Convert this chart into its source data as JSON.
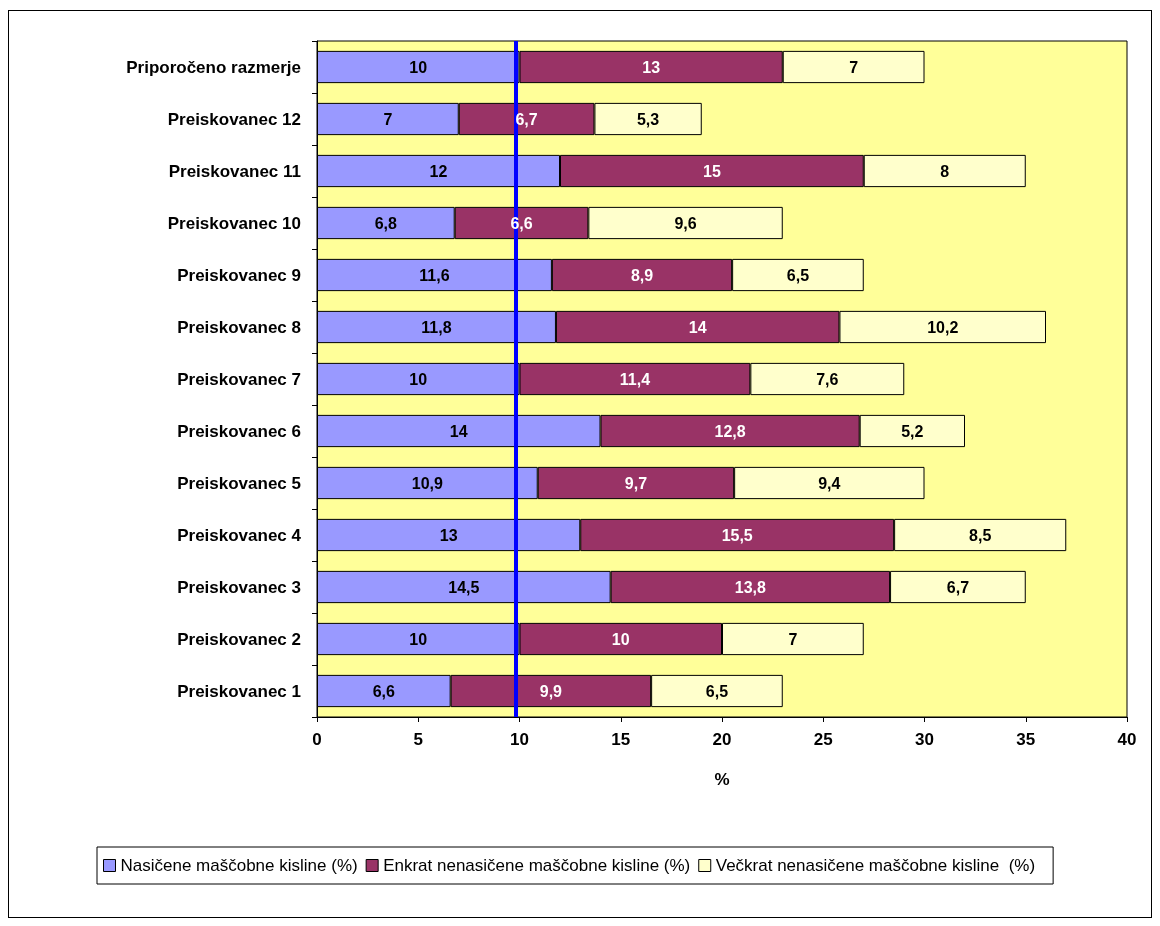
{
  "chart_data": {
    "type": "bar",
    "orientation": "horizontal",
    "stacked": true,
    "xlabel": "%",
    "categories": [
      "Priporočeno razmerje",
      "Preiskovanec 12",
      "Preiskovanec 11",
      "Preiskovanec 10",
      "Preiskovanec 9",
      "Preiskovanec 8",
      "Preiskovanec 7",
      "Preiskovanec 6",
      "Preiskovanec 5",
      "Preiskovanec 4",
      "Preiskovanec 3",
      "Preiskovanec 2",
      "Preiskovanec 1"
    ],
    "series": [
      {
        "name": "Nasičene maščobne kisline (%)",
        "color": "#9999ff",
        "values": [
          10,
          7,
          12,
          6.8,
          11.6,
          11.8,
          10,
          14,
          10.9,
          13,
          14.5,
          10,
          6.6
        ],
        "value_labels": [
          "10",
          "7",
          "12",
          "6,8",
          "11,6",
          "11,8",
          "10",
          "14",
          "10,9",
          "13",
          "14,5",
          "10",
          "6,6"
        ]
      },
      {
        "name": "Enkrat nenasičene maščobne kisline (%)",
        "color": "#993366",
        "values": [
          13,
          6.7,
          15,
          6.6,
          8.9,
          14,
          11.4,
          12.8,
          9.7,
          15.5,
          13.8,
          10,
          9.9
        ],
        "value_labels": [
          "13",
          "6,7",
          "15",
          "6,6",
          "8,9",
          "14",
          "11,4",
          "12,8",
          "9,7",
          "15,5",
          "13,8",
          "10",
          "9,9"
        ]
      },
      {
        "name": "Večkrat nenasičene maščobne kisline  (%)",
        "color": "#ffffcc",
        "values": [
          7,
          5.3,
          8,
          9.6,
          6.5,
          10.2,
          7.6,
          5.2,
          9.4,
          8.5,
          6.7,
          7,
          6.5
        ],
        "value_labels": [
          "7",
          "5,3",
          "8",
          "9,6",
          "6,5",
          "10,2",
          "7,6",
          "5,2",
          "9,4",
          "8,5",
          "6,7",
          "7",
          "6,5"
        ]
      }
    ],
    "xlim": [
      0,
      40
    ],
    "xticks": [
      0,
      5,
      10,
      15,
      20,
      25,
      30,
      35,
      40
    ],
    "ref_lines": [
      {
        "axis": "x",
        "value": 9.8,
        "color": "#0000ff"
      }
    ],
    "grid": false,
    "legend": "bottom"
  }
}
